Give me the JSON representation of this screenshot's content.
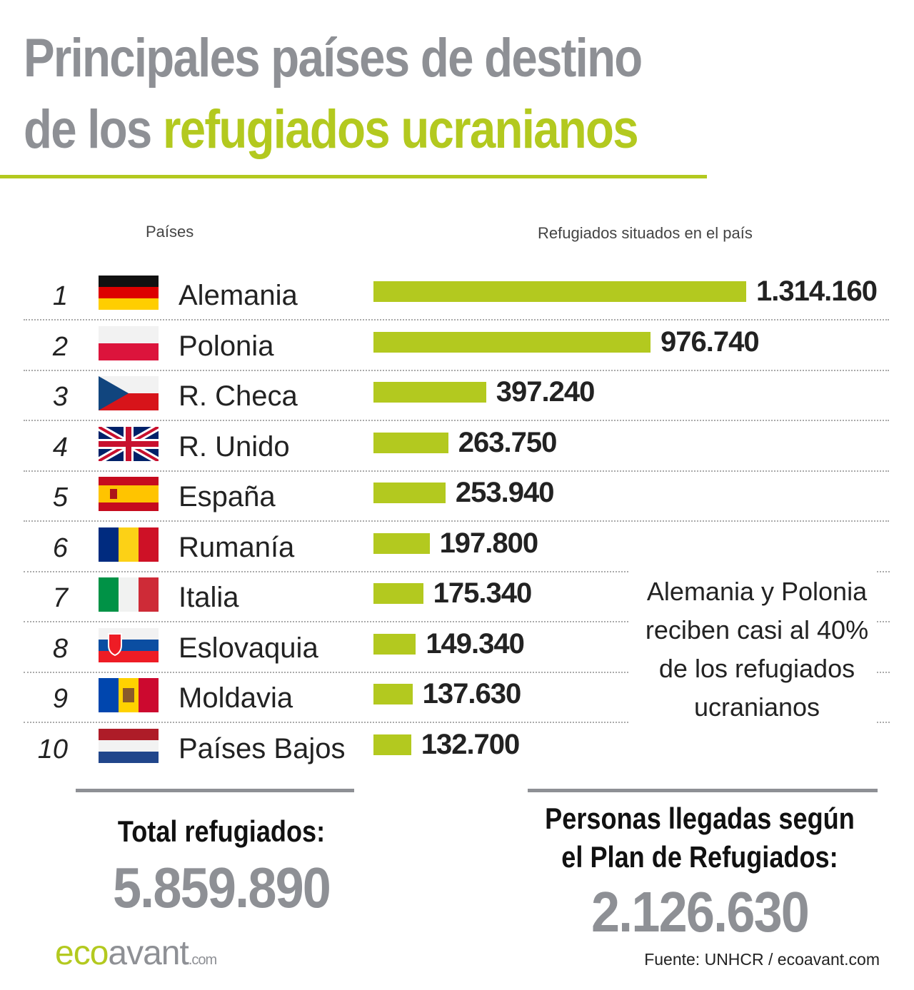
{
  "title": {
    "line1": "Principales países de destino",
    "line2_plain": "de los ",
    "line2_highlight": "refugiados ucranianos"
  },
  "colors": {
    "accent": "#b3c91f",
    "gray": "#8e9095",
    "text": "#222222"
  },
  "chart_data": {
    "type": "bar",
    "orientation": "horizontal",
    "xlabel": "Refugiados situados en el país",
    "ylabel": "Países",
    "ranks": [
      "1",
      "2",
      "3",
      "4",
      "5",
      "6",
      "7",
      "8",
      "9",
      "10"
    ],
    "categories": [
      "Alemania",
      "Polonia",
      "R. Checa",
      "R. Unido",
      "España",
      "Rumanía",
      "Italia",
      "Eslovaquia",
      "Moldavia",
      "Países Bajos"
    ],
    "values": [
      1314160,
      976740,
      397240,
      263750,
      253940,
      197800,
      175340,
      149340,
      137630,
      132700
    ],
    "value_labels": [
      "1.314.160",
      "976.740",
      "397.240",
      "263.750",
      "253.940",
      "197.800",
      "175.340",
      "149.340",
      "137.630",
      "132.700"
    ],
    "flags": [
      "germany-flag",
      "poland-flag",
      "czech-flag",
      "uk-flag",
      "spain-flag",
      "romania-flag",
      "italy-flag",
      "slovakia-flag",
      "moldova-flag",
      "netherlands-flag"
    ],
    "annotation": "Alemania y Polonia reciben casi al 40% de los refugiados ucranianos"
  },
  "summary": {
    "total_label": "Total refugiados:",
    "total_value": "5.859.890",
    "plan_label_1": "Personas llegadas según",
    "plan_label_2": "el Plan de Refugiados:",
    "plan_value": "2.126.630"
  },
  "footer": {
    "logo_eco": "eco",
    "logo_avant": "avant",
    "logo_com": ".com",
    "source_label": "Fuente: ",
    "source_value": "UNHCR / ecoavant.com"
  }
}
